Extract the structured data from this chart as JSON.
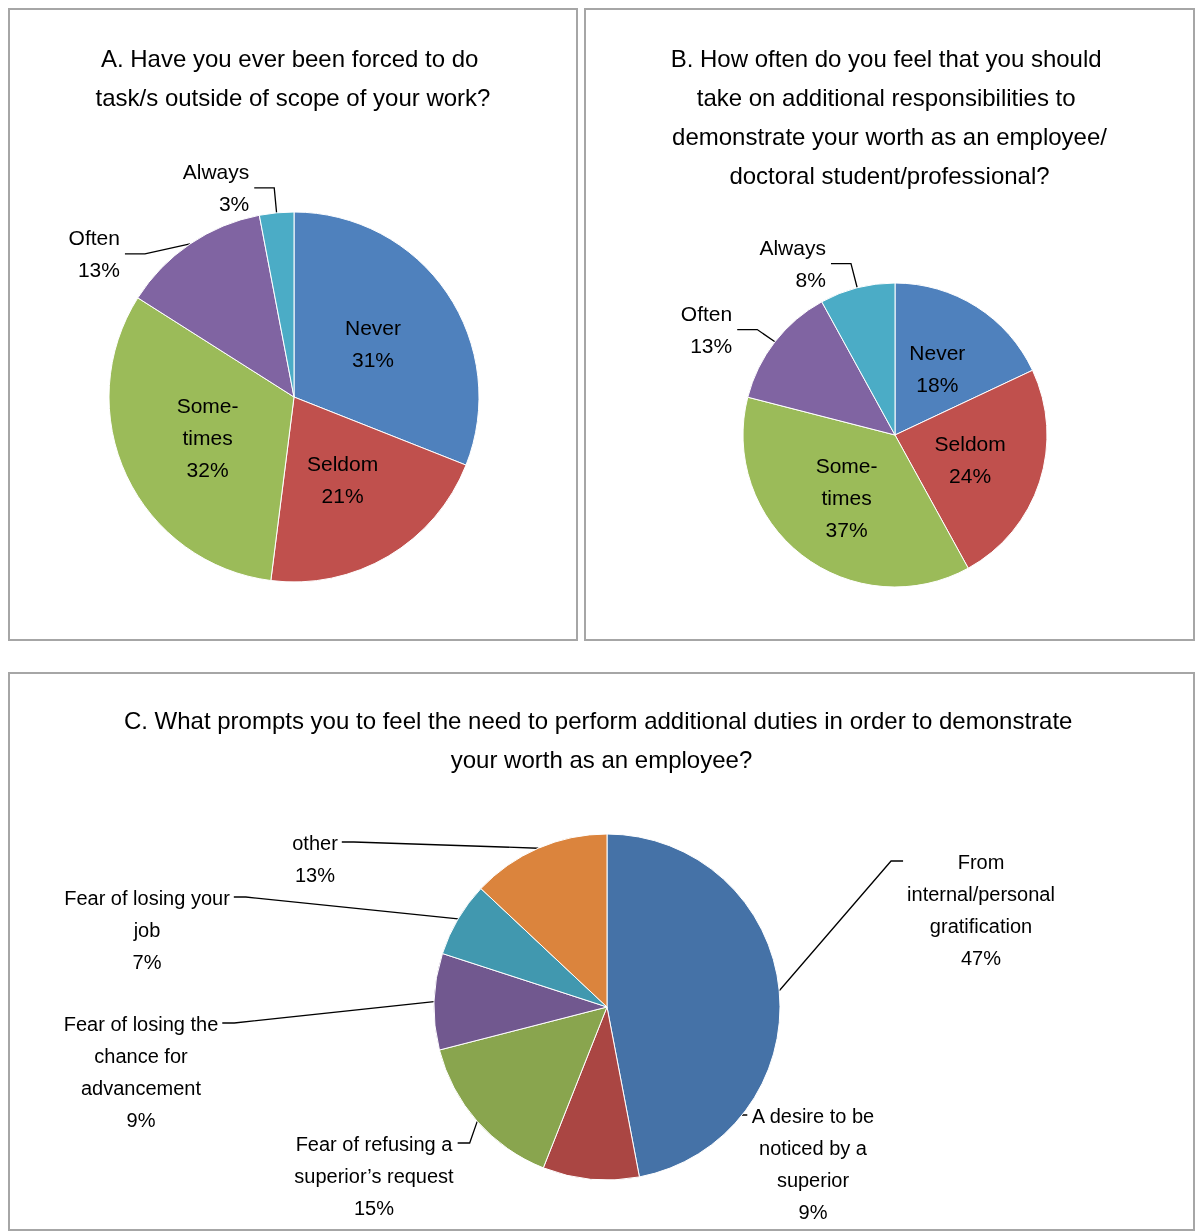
{
  "chart_data": [
    {
      "type": "pie",
      "title": "A. Have you ever been forced to do task/s outside of scope of your work?",
      "categories": [
        "Never",
        "Seldom",
        "Some-times",
        "Often",
        "Always"
      ],
      "values": [
        31,
        21,
        32,
        13,
        3
      ],
      "value_labels": [
        "31%",
        "21%",
        "32%",
        "13%",
        "3%"
      ],
      "colors": [
        "#4f81bd",
        "#c0504d",
        "#9bbb59",
        "#8064a2",
        "#4bacc6"
      ],
      "legend": false
    },
    {
      "type": "pie",
      "title": "B. How often do you feel that you should take on additional responsibilities to demonstrate your worth as an employee/doctoral student/professional?",
      "categories": [
        "Never",
        "Seldom",
        "Some-times",
        "Often",
        "Always"
      ],
      "values": [
        18,
        24,
        37,
        13,
        8
      ],
      "value_labels": [
        "18%",
        "24%",
        "37%",
        "13%",
        "8%"
      ],
      "colors": [
        "#4f81bd",
        "#c0504d",
        "#9bbb59",
        "#8064a2",
        "#4bacc6"
      ],
      "legend": false
    },
    {
      "type": "pie",
      "title": "C. What prompts you to feel the need to perform additional duties in order to demonstrate your worth as an employee?",
      "categories": [
        "From internal/personal gratification",
        "A desire to be noticed by a superior",
        "Fear of refusing a superior’s request",
        "Fear of losing the chance for advancement",
        "Fear of losing your job",
        "other"
      ],
      "values": [
        47,
        9,
        15,
        9,
        7,
        13
      ],
      "value_labels": [
        "47%",
        "9%",
        "15%",
        "9%",
        "7%",
        "13%"
      ],
      "colors": [
        "#4572a7",
        "#aa4643",
        "#89a54e",
        "#71588f",
        "#4198af",
        "#db843d"
      ],
      "legend": false
    }
  ]
}
